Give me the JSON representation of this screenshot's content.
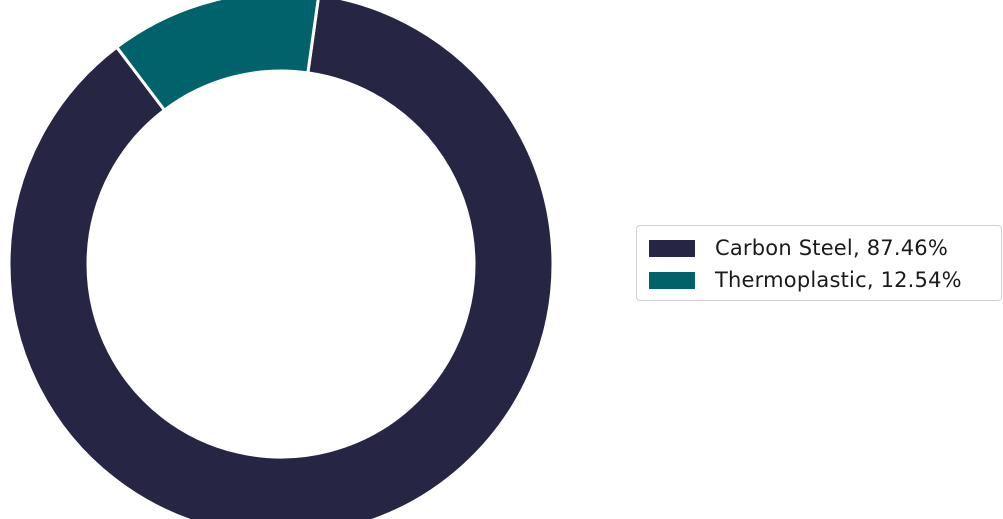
{
  "chart_data": {
    "type": "pie",
    "variant": "donut",
    "title": "",
    "slices": [
      {
        "label": "Carbon Steel",
        "value": 87.46,
        "color": "#262544"
      },
      {
        "label": "Thermoplastic",
        "value": 12.54,
        "color": "#00636b"
      }
    ],
    "legend": {
      "placement": "right",
      "entries": [
        "Carbon Steel, 87.46%",
        "Thermoplastic, 12.54%"
      ]
    },
    "grid": false
  }
}
